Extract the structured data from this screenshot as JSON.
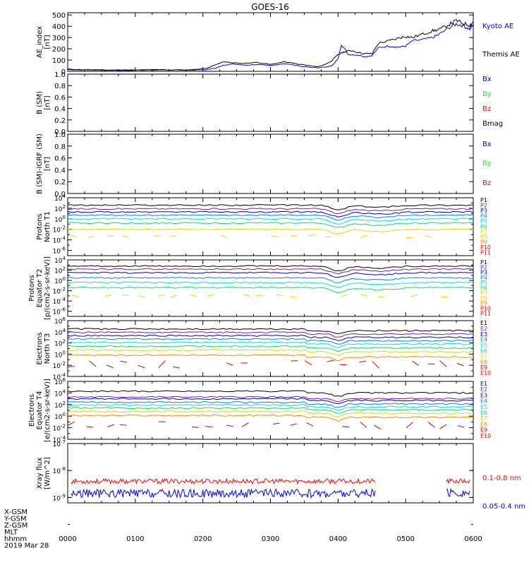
{
  "title": "GOES-16",
  "footer": {
    "rows": [
      "X-GSM",
      "Y-GSM",
      "Z-GSM",
      "MLT",
      "hhmm",
      "2019 Mar 28"
    ]
  },
  "colors": {
    "black": "#000000",
    "blue": "#0000ff",
    "green": "#00ff00",
    "red": "#ff0000"
  },
  "chart_data": [
    {
      "type": "line",
      "id": "ae",
      "ylabel": [
        "AE_index",
        "[nT]"
      ],
      "ylim": [
        0,
        520
      ],
      "yticks": [
        0,
        100,
        200,
        300,
        400,
        500
      ],
      "ytick_labels": [
        "0",
        "100",
        "200",
        "300",
        "400",
        "500"
      ],
      "series": [
        {
          "name": "Kyoto AE",
          "color": "#0000ff",
          "x": [
            0,
            0.2,
            0.5,
            0.8,
            1.1,
            1.4,
            1.8,
            2.05,
            2.2,
            2.3,
            2.45,
            2.6,
            2.8,
            3.0,
            3.2,
            3.45,
            3.7,
            3.9,
            4.0,
            4.05,
            4.15,
            4.3,
            4.4,
            4.5,
            4.6,
            4.75,
            4.9,
            5.0,
            5.1,
            5.25,
            5.4,
            5.5,
            5.65,
            5.75,
            5.85,
            5.95,
            6.0
          ],
          "y": [
            15,
            12,
            10,
            8,
            10,
            12,
            10,
            15,
            30,
            55,
            65,
            55,
            60,
            50,
            70,
            45,
            30,
            45,
            110,
            240,
            150,
            145,
            130,
            140,
            210,
            225,
            215,
            225,
            270,
            280,
            300,
            330,
            390,
            420,
            405,
            375,
            420
          ]
        },
        {
          "name": "Themis AE",
          "color": "#000000",
          "x": [
            0,
            0.2,
            0.5,
            0.8,
            1.1,
            1.4,
            1.8,
            2.05,
            2.2,
            2.3,
            2.45,
            2.6,
            2.8,
            3.0,
            3.2,
            3.45,
            3.7,
            3.8,
            3.9,
            4.0,
            4.1,
            4.2,
            4.35,
            4.5,
            4.6,
            4.75,
            4.9,
            5.0,
            5.1,
            5.25,
            5.4,
            5.5,
            5.65,
            5.75,
            5.85,
            5.95,
            6.0
          ],
          "y": [
            20,
            15,
            12,
            12,
            14,
            15,
            12,
            25,
            60,
            85,
            75,
            70,
            80,
            60,
            85,
            60,
            40,
            60,
            90,
            150,
            175,
            185,
            160,
            155,
            250,
            270,
            295,
            310,
            300,
            330,
            360,
            370,
            420,
            450,
            425,
            410,
            440
          ]
        }
      ],
      "legend": [
        "Kyoto AE",
        "Themis AE"
      ]
    },
    {
      "type": "line",
      "id": "bsm",
      "ylabel": [
        "B (SM)",
        "[nT]"
      ],
      "ylim": [
        0,
        1.0
      ],
      "yticks": [
        0,
        0.2,
        0.4,
        0.6,
        0.8,
        1.0
      ],
      "ytick_labels": [
        "0.0",
        "0.2",
        "0.4",
        "0.6",
        "0.8",
        "1.0"
      ],
      "series": [],
      "legend": [
        {
          "name": "Bx",
          "color": "#0000ff"
        },
        {
          "name": "By",
          "color": "#00ff00"
        },
        {
          "name": "Bz",
          "color": "#ff0000"
        },
        {
          "name": "Bmag",
          "color": "#000000"
        }
      ]
    },
    {
      "type": "line",
      "id": "bigrf",
      "ylabel": [
        "B (SM)-IGRF (SM)",
        "[nT]"
      ],
      "ylim": [
        0,
        1.0
      ],
      "yticks": [
        0,
        0.2,
        0.4,
        0.6,
        0.8,
        1.0
      ],
      "ytick_labels": [
        "0.0",
        "0.2",
        "0.4",
        "0.6",
        "0.8",
        "1.0"
      ],
      "series": [],
      "legend": [
        {
          "name": "Bx",
          "color": "#0000ff"
        },
        {
          "name": "By",
          "color": "#00ff00"
        },
        {
          "name": "Bz",
          "color": "#ff0000"
        }
      ]
    },
    {
      "type": "line",
      "id": "protons_t1",
      "log": true,
      "ylabel": [
        "Protons",
        "North T1"
      ],
      "ylim_exp": [
        -7,
        4
      ],
      "yticks_exp": [
        4,
        2,
        0,
        -2,
        -4,
        -6
      ],
      "channels": [
        {
          "name": "P1",
          "color": "#000000",
          "level": 2.6
        },
        {
          "name": "P2",
          "color": "#7b1fa2",
          "level": 1.9
        },
        {
          "name": "P3",
          "color": "#0000cc",
          "level": 1.3
        },
        {
          "name": "P4",
          "color": "#0080ff",
          "level": 0.7
        },
        {
          "name": "P5",
          "color": "#00e0e0",
          "level": 0.0
        },
        {
          "name": "P6",
          "color": "#00e070",
          "level": -0.8
        },
        {
          "name": "P7",
          "color": "#d0e000",
          "level": -2.0
        },
        {
          "name": "P8",
          "color": "#ffcc00",
          "level": -3.3,
          "sparse": true
        },
        {
          "name": "P9",
          "color": "#ff8800"
        },
        {
          "name": "P10",
          "color": "#ff0000"
        },
        {
          "name": "P11",
          "color": "#cc0000"
        }
      ]
    },
    {
      "type": "line",
      "id": "protons_t2",
      "log": true,
      "ylabel": [
        "Protons",
        "Equator T2",
        "[p/(cm2-s-sr-keV)]"
      ],
      "ylim_exp": [
        -7,
        4
      ],
      "yticks_exp": [
        4,
        2,
        0,
        -2,
        -4,
        -6
      ],
      "channels": [
        {
          "name": "P1",
          "color": "#000000",
          "level": 2.8
        },
        {
          "name": "P2",
          "color": "#7b1fa2",
          "level": 2.2
        },
        {
          "name": "P3",
          "color": "#0000cc",
          "level": 1.5
        },
        {
          "name": "P4",
          "color": "#0080ff",
          "level": 0.5
        },
        {
          "name": "P5",
          "color": "#00e0e0",
          "level": -0.4
        },
        {
          "name": "P6",
          "color": "#00e070",
          "level": -1.4
        },
        {
          "name": "P7",
          "color": "#d0e000",
          "level": -3.0,
          "sparse": true
        },
        {
          "name": "P8",
          "color": "#ffcc00"
        },
        {
          "name": "P9",
          "color": "#ff8800"
        },
        {
          "name": "P10",
          "color": "#ff0000"
        },
        {
          "name": "P11",
          "color": "#cc0000"
        }
      ]
    },
    {
      "type": "line",
      "id": "electrons_t3",
      "log": true,
      "ylabel": [
        "Electrons",
        "North T3"
      ],
      "ylim_exp": [
        -4,
        6
      ],
      "yticks_exp": [
        6,
        4,
        2,
        0,
        -2,
        -4
      ],
      "channels": [
        {
          "name": "E1",
          "color": "#000000",
          "level": 4.5
        },
        {
          "name": "E2",
          "color": "#7b1fa2",
          "level": 3.9
        },
        {
          "name": "E3",
          "color": "#0000cc",
          "level": 3.3
        },
        {
          "name": "E4",
          "color": "#0080ff",
          "level": 2.7
        },
        {
          "name": "E5",
          "color": "#00e0e0",
          "level": 2.1
        },
        {
          "name": "E6",
          "color": "#00e070",
          "level": 1.4
        },
        {
          "name": "E7",
          "color": "#d0e000",
          "level": 0.7
        },
        {
          "name": "E8",
          "color": "#ff8800",
          "level": -0.2
        },
        {
          "name": "E9",
          "color": "#cc0000",
          "level": -1.8,
          "sparse": true
        },
        {
          "name": "E10",
          "color": "#ff0000"
        }
      ]
    },
    {
      "type": "line",
      "id": "electrons_t4",
      "log": true,
      "ylabel": [
        "Electrons",
        "Equator T4",
        "[e/(cm2-s-sr-keV)]"
      ],
      "ylim_exp": [
        -4,
        6
      ],
      "yticks_exp": [
        6,
        4,
        2,
        0,
        -2,
        -4
      ],
      "channels": [
        {
          "name": "E1",
          "color": "#000000",
          "level": 4.3
        },
        {
          "name": "E2",
          "color": "#7b1fa2",
          "level": 3.3
        },
        {
          "name": "E3",
          "color": "#0000cc",
          "level": 3.0
        },
        {
          "name": "E4",
          "color": "#0080ff",
          "level": 2.4
        },
        {
          "name": "E5",
          "color": "#00e0e0",
          "level": 1.9
        },
        {
          "name": "E6",
          "color": "#00e070",
          "level": 1.4
        },
        {
          "name": "E7",
          "color": "#d0e000",
          "level": 0.8
        },
        {
          "name": "E8",
          "color": "#ff8800",
          "level": 0.1
        },
        {
          "name": "E9",
          "color": "#cc0000",
          "level": -1.6,
          "sparse": true
        },
        {
          "name": "E10",
          "color": "#ff0000"
        }
      ]
    },
    {
      "type": "line",
      "id": "xray",
      "log": true,
      "ylabel": [
        "Xray flux",
        "[W/m^2]"
      ],
      "ylim_exp": [
        -9.2,
        -7
      ],
      "yticks_exp": [
        -7,
        -8,
        -9
      ],
      "series": [
        {
          "name": "0.1-0.8 nm",
          "color": "#ff0000",
          "level": -8.4
        },
        {
          "name": "0.05-0.4 nm",
          "color": "#0000ff",
          "level": -8.85
        }
      ]
    }
  ],
  "xaxis": {
    "xlim": [
      0,
      6
    ],
    "tick_labels": [
      "0000",
      "0100",
      "0200",
      "0300",
      "0400",
      "0500",
      "0600"
    ]
  }
}
